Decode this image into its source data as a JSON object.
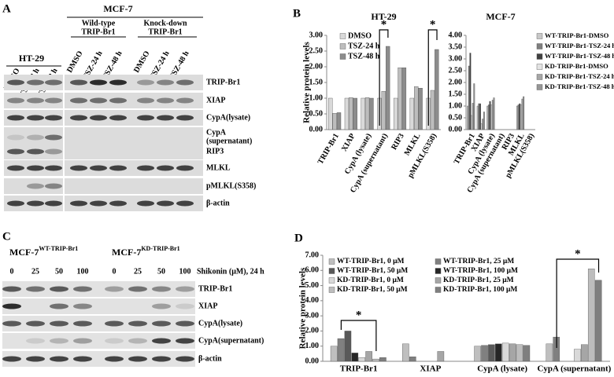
{
  "panel_labels": {
    "b": "B",
    "d": "D"
  },
  "blot_a": {
    "label": "A",
    "ht29": "HT-29",
    "mcf7": "MCF-7",
    "wt": [
      "Wild-type",
      "TRIP-Br1"
    ],
    "kd": [
      "Knock-down",
      "TRIP-Br1"
    ],
    "lanes": [
      "DMSO",
      "TSZ-24 h",
      "TSZ-48 h"
    ],
    "rows": [
      "TRIP-Br1",
      "XIAP",
      "CypA(lysate)",
      [
        "CypA",
        "(supernatant)"
      ],
      "RIP3",
      "MLKL",
      "pMLKL(S358)",
      "β-actin"
    ]
  },
  "blot_c": {
    "label": "C",
    "groups": [
      {
        "name": "MCF-7",
        "sup": "WT-TRIP-Br1"
      },
      {
        "name": "MCF-7",
        "sup": "KD-TRIP-Br1"
      }
    ],
    "treatment": "Shikonin (μM),  24 h",
    "lanes": [
      "0",
      "25",
      "50",
      "100"
    ],
    "rows": [
      "TRIP-Br1",
      "XIAP",
      "CypA(lysate)",
      "CypA(supernatant)",
      "β-actin"
    ]
  },
  "chart_data": [
    {
      "type": "bar",
      "title": "HT-29",
      "y_label": "Relative protein levels",
      "categories": [
        "TRIP-Br1",
        "XIAP",
        "CypA (lysate)",
        "CypA (supernatant)",
        "RIP3",
        "MLKL",
        "pMLKL(S358)"
      ],
      "series": [
        {
          "name": "DMSO",
          "color": "#d9d9d9",
          "values": [
            1,
            1,
            1,
            1,
            1,
            1,
            1
          ]
        },
        {
          "name": "TSZ-24 h",
          "color": "#bdbdbd",
          "values": [
            0.52,
            1.02,
            1.02,
            1.22,
            1.97,
            1.37,
            1.25
          ]
        },
        {
          "name": "TSZ-48 h",
          "color": "#8c8c8c",
          "values": [
            0.54,
            1.0,
            1.0,
            2.65,
            1.97,
            1.32,
            2.55
          ]
        }
      ],
      "ylim": [
        0,
        3
      ],
      "yticks": [
        {
          "value": 0,
          "label": "0.00"
        },
        {
          "value": 0.5,
          "label": "0.50"
        },
        {
          "value": 1,
          "label": "1.00"
        },
        {
          "value": 1.5,
          "label": "1.50"
        },
        {
          "value": 2,
          "label": "2.00"
        },
        {
          "value": 2.5,
          "label": "2.50"
        },
        {
          "value": 3,
          "label": "3.00"
        }
      ],
      "annotations": [
        "*",
        "*"
      ]
    },
    {
      "type": "bar",
      "title": "MCF-7",
      "categories": [
        "TRIP-Br1",
        "XIAP",
        "CypA (lysate)",
        "CypA (supernatant)",
        "RIP3",
        "MLKL",
        "pMLKL(S358)"
      ],
      "series": [
        {
          "name": "WT-TRIP-Br1-DMSO",
          "color": "#c8c8c8",
          "values": [
            1.0,
            1.0,
            1.0,
            null,
            null,
            1.0,
            null
          ]
        },
        {
          "name": "WT-TRIP-Br1-TSZ-24 h",
          "color": "#7f7f7f",
          "values": [
            2.7,
            1.1,
            1.05,
            null,
            null,
            1.05,
            null
          ]
        },
        {
          "name": "WT-TRIP-Br1-TSZ-48 h",
          "color": "#404040",
          "values": [
            3.25,
            1.1,
            1.2,
            null,
            null,
            1.1,
            null
          ]
        },
        {
          "name": "KD-TRIP-Br1-DMSO",
          "color": "#e3e3e3",
          "values": [
            0.6,
            0.25,
            1.05,
            null,
            null,
            1.05,
            null
          ]
        },
        {
          "name": "KD-TRIP-Br1-TSZ-24 h",
          "color": "#a6a6a6",
          "values": [
            1.12,
            0.45,
            1.25,
            null,
            null,
            1.3,
            null
          ]
        },
        {
          "name": "KD-TRIP-Br1-TSZ-48 h",
          "color": "#969696",
          "values": [
            1.95,
            0.75,
            1.35,
            null,
            null,
            1.4,
            null
          ]
        }
      ],
      "ylim": [
        0,
        4
      ],
      "yticks": [
        {
          "value": 0,
          "label": "0.00"
        },
        {
          "value": 0.5,
          "label": "0.50"
        },
        {
          "value": 1,
          "label": "1.00"
        },
        {
          "value": 1.5,
          "label": "1.50"
        },
        {
          "value": 2,
          "label": "2.00"
        },
        {
          "value": 2.5,
          "label": "2.50"
        },
        {
          "value": 3,
          "label": "3.00"
        },
        {
          "value": 3.5,
          "label": "3.50"
        },
        {
          "value": 4,
          "label": "4.00"
        }
      ]
    },
    {
      "type": "bar",
      "y_label": "Relative protein levels",
      "categories": [
        "TRIP-Br1",
        "XIAP",
        "CypA (lysate)",
        "CypA (supernatant)"
      ],
      "series": [
        {
          "name": "WT-TRIP-Br1, 0 μM",
          "color": "#bfbfbf",
          "values": [
            1.0,
            1.15,
            1.0,
            1.15
          ]
        },
        {
          "name": "WT-TRIP-Br1, 25 μM",
          "color": "#808080",
          "values": [
            1.5,
            0.3,
            1.05,
            1.6
          ]
        },
        {
          "name": "WT-TRIP-Br1, 50 μM",
          "color": "#595959",
          "values": [
            2.0,
            null,
            1.1,
            null
          ]
        },
        {
          "name": "WT-TRIP-Br1, 100 μM",
          "color": "#262626",
          "values": [
            0.55,
            null,
            1.15,
            null
          ]
        },
        {
          "name": "KD-TRIP-Br1, 0 μM",
          "color": "#d9d9d9",
          "values": [
            0.25,
            null,
            1.2,
            0.8
          ]
        },
        {
          "name": "KD-TRIP-Br1, 25 μM",
          "color": "#a6a6a6",
          "values": [
            0.65,
            0.65,
            1.15,
            1.1
          ]
        },
        {
          "name": "KD-TRIP-Br1, 50 μM",
          "color": "#bdbdbd",
          "values": [
            0.15,
            null,
            1.1,
            6.1
          ]
        },
        {
          "name": "KD-TRIP-Br1, 100 μM",
          "color": "#7f7f7f",
          "values": [
            0.25,
            null,
            1.05,
            5.35
          ]
        }
      ],
      "ylim": [
        0,
        7
      ],
      "yticks": [
        {
          "value": 0,
          "label": "0.00"
        },
        {
          "value": 1,
          "label": "1.00"
        },
        {
          "value": 2,
          "label": "2.00"
        },
        {
          "value": 3,
          "label": "3.00"
        },
        {
          "value": 4,
          "label": "4.00"
        },
        {
          "value": 5,
          "label": "5.00"
        },
        {
          "value": 6,
          "label": "6.00"
        },
        {
          "value": 7,
          "label": "7.00"
        }
      ],
      "annotations": [
        "*",
        "*"
      ]
    }
  ]
}
